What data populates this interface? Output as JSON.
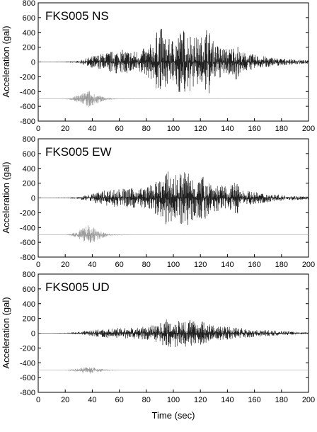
{
  "chart_data": [
    {
      "type": "line",
      "title": "FKS005 NS",
      "xlabel": "",
      "ylabel": "Acceleration (gal)",
      "xlim": [
        0,
        200
      ],
      "ylim": [
        -800,
        800
      ],
      "xticks": [
        0,
        20,
        40,
        60,
        80,
        100,
        120,
        140,
        160,
        180,
        200
      ],
      "xtick_labels": [
        "0",
        "20",
        "40",
        "60",
        "80",
        "100",
        "120",
        "140",
        "160",
        "180",
        "200"
      ],
      "yticks": [
        -800,
        -600,
        -400,
        -200,
        0,
        200,
        400,
        600,
        800
      ],
      "ytick_labels": [
        "-800",
        "-600",
        "-400",
        "-200",
        "0",
        "200",
        "400",
        "600",
        "800"
      ],
      "grid": false,
      "series": [
        {
          "color": "#1a1a1a",
          "x": [
            0,
            20,
            30,
            40,
            50,
            60,
            70,
            80,
            85,
            90,
            95,
            100,
            105,
            110,
            115,
            120,
            125,
            130,
            140,
            147,
            150,
            160,
            170,
            180,
            190,
            200
          ],
          "y": [
            0,
            5,
            15,
            80,
            130,
            170,
            150,
            190,
            280,
            520,
            300,
            330,
            440,
            470,
            360,
            330,
            520,
            260,
            180,
            250,
            140,
            100,
            70,
            50,
            35,
            20
          ],
          "baseline": 0
        },
        {
          "color": "#999999",
          "x": [
            0,
            20,
            25,
            30,
            35,
            38,
            40,
            45,
            50,
            55,
            60,
            80,
            100,
            150,
            200
          ],
          "y": [
            0,
            3,
            20,
            60,
            100,
            120,
            90,
            50,
            20,
            8,
            4,
            2,
            1,
            1,
            0
          ],
          "baseline": -500
        }
      ]
    },
    {
      "type": "line",
      "title": "FKS005 EW",
      "xlabel": "",
      "ylabel": "Acceleration (gal)",
      "xlim": [
        0,
        200
      ],
      "ylim": [
        -800,
        800
      ],
      "xticks": [
        0,
        20,
        40,
        60,
        80,
        100,
        120,
        140,
        160,
        180,
        200
      ],
      "xtick_labels": [
        "0",
        "20",
        "40",
        "60",
        "80",
        "100",
        "120",
        "140",
        "160",
        "180",
        "200"
      ],
      "yticks": [
        -800,
        -600,
        -400,
        -200,
        0,
        200,
        400,
        600,
        800
      ],
      "ytick_labels": [
        "-800",
        "-600",
        "-400",
        "-200",
        "0",
        "200",
        "400",
        "600",
        "800"
      ],
      "grid": false,
      "series": [
        {
          "color": "#1a1a1a",
          "x": [
            0,
            20,
            30,
            40,
            50,
            60,
            70,
            80,
            90,
            95,
            100,
            105,
            110,
            115,
            120,
            125,
            130,
            140,
            147,
            150,
            160,
            170,
            180,
            190,
            200
          ],
          "y": [
            0,
            5,
            15,
            60,
            110,
            130,
            130,
            150,
            250,
            370,
            300,
            350,
            400,
            300,
            280,
            320,
            200,
            150,
            230,
            120,
            80,
            60,
            40,
            30,
            20
          ],
          "baseline": 0
        },
        {
          "color": "#999999",
          "x": [
            0,
            20,
            25,
            30,
            35,
            38,
            40,
            45,
            50,
            55,
            60,
            80,
            100,
            150,
            200
          ],
          "y": [
            0,
            3,
            20,
            60,
            110,
            150,
            110,
            60,
            25,
            10,
            5,
            2,
            1,
            1,
            0
          ],
          "baseline": -500
        }
      ]
    },
    {
      "type": "line",
      "title": "FKS005 UD",
      "xlabel": "Time (sec)",
      "ylabel": "Acceleration (gal)",
      "xlim": [
        0,
        200
      ],
      "ylim": [
        -800,
        800
      ],
      "xticks": [
        0,
        20,
        40,
        60,
        80,
        100,
        120,
        140,
        160,
        180,
        200
      ],
      "xtick_labels": [
        "0",
        "20",
        "40",
        "60",
        "80",
        "100",
        "120",
        "140",
        "160",
        "180",
        "200"
      ],
      "yticks": [
        -800,
        -600,
        -400,
        -200,
        0,
        200,
        400,
        600,
        800
      ],
      "ytick_labels": [
        "-800",
        "-600",
        "-400",
        "-200",
        "0",
        "200",
        "400",
        "600",
        "800"
      ],
      "grid": false,
      "series": [
        {
          "color": "#1a1a1a",
          "x": [
            0,
            20,
            30,
            40,
            50,
            60,
            70,
            80,
            90,
            95,
            100,
            105,
            110,
            115,
            120,
            125,
            130,
            140,
            150,
            160,
            170,
            180,
            190,
            200
          ],
          "y": [
            0,
            5,
            20,
            45,
            60,
            70,
            75,
            90,
            140,
            200,
            180,
            220,
            200,
            170,
            180,
            140,
            110,
            90,
            70,
            50,
            40,
            30,
            20,
            15
          ],
          "baseline": 0
        },
        {
          "color": "#999999",
          "x": [
            0,
            20,
            25,
            30,
            35,
            38,
            40,
            45,
            50,
            55,
            60,
            80,
            100,
            150,
            200
          ],
          "y": [
            0,
            3,
            12,
            25,
            40,
            50,
            40,
            25,
            12,
            6,
            3,
            2,
            1,
            1,
            0
          ],
          "baseline": -500
        }
      ]
    }
  ]
}
